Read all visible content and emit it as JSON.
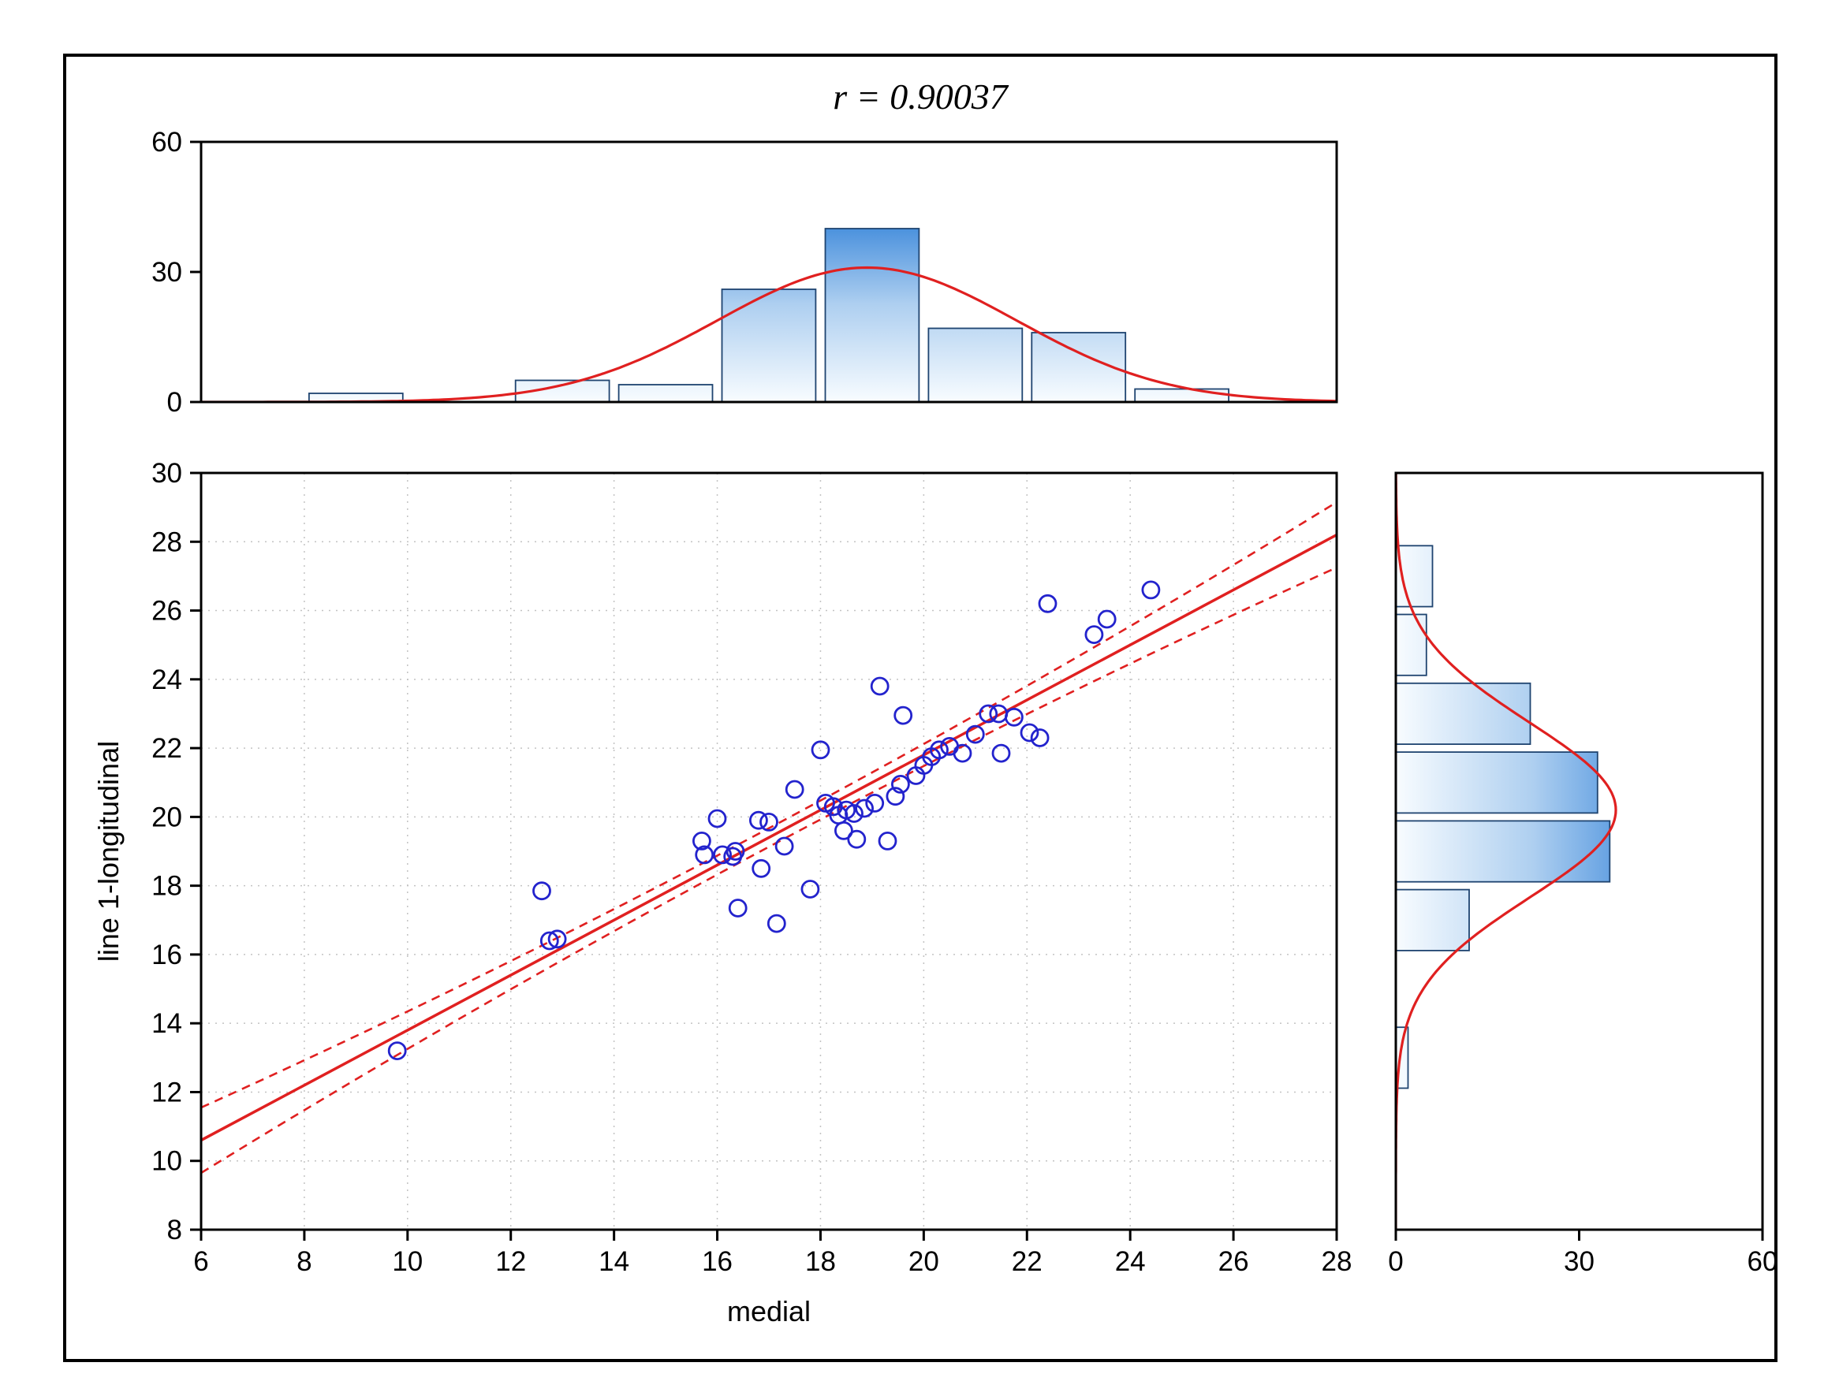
{
  "chart_data": {
    "type": "scatter",
    "title": "r = 0.90037",
    "r": 0.90037,
    "xlabel": "medial",
    "ylabel": "line 1-longitudinal",
    "x_range": [
      6,
      28
    ],
    "y_range": [
      8,
      30
    ],
    "x_ticks": [
      6,
      8,
      10,
      12,
      14,
      16,
      18,
      20,
      22,
      24,
      26,
      28
    ],
    "y_ticks": [
      8,
      10,
      12,
      14,
      16,
      18,
      20,
      22,
      24,
      26,
      28,
      30
    ],
    "grid": true,
    "points": [
      [
        9.8,
        13.2
      ],
      [
        12.6,
        17.85
      ],
      [
        12.75,
        16.4
      ],
      [
        12.9,
        16.45
      ],
      [
        15.7,
        19.3
      ],
      [
        15.75,
        18.9
      ],
      [
        16.0,
        19.95
      ],
      [
        16.1,
        18.9
      ],
      [
        16.3,
        18.85
      ],
      [
        16.35,
        19.0
      ],
      [
        16.4,
        17.35
      ],
      [
        16.8,
        19.9
      ],
      [
        16.85,
        18.5
      ],
      [
        17.0,
        19.85
      ],
      [
        17.15,
        16.9
      ],
      [
        17.3,
        19.15
      ],
      [
        17.5,
        20.8
      ],
      [
        17.8,
        17.9
      ],
      [
        18.0,
        21.95
      ],
      [
        18.1,
        20.4
      ],
      [
        18.25,
        20.3
      ],
      [
        18.35,
        20.05
      ],
      [
        18.45,
        19.6
      ],
      [
        18.5,
        20.2
      ],
      [
        18.65,
        20.1
      ],
      [
        18.7,
        19.35
      ],
      [
        18.85,
        20.25
      ],
      [
        19.05,
        20.4
      ],
      [
        19.15,
        23.8
      ],
      [
        19.3,
        19.3
      ],
      [
        19.45,
        20.6
      ],
      [
        19.55,
        20.95
      ],
      [
        19.6,
        22.95
      ],
      [
        19.85,
        21.2
      ],
      [
        20.0,
        21.5
      ],
      [
        20.15,
        21.75
      ],
      [
        20.3,
        21.95
      ],
      [
        20.5,
        22.05
      ],
      [
        20.75,
        21.85
      ],
      [
        21.0,
        22.4
      ],
      [
        21.25,
        23.0
      ],
      [
        21.45,
        23.0
      ],
      [
        21.5,
        21.85
      ],
      [
        21.75,
        22.9
      ],
      [
        22.05,
        22.45
      ],
      [
        22.25,
        22.3
      ],
      [
        22.4,
        26.2
      ],
      [
        23.3,
        25.3
      ],
      [
        23.55,
        25.75
      ],
      [
        24.4,
        26.6
      ]
    ],
    "regression_line": {
      "x": [
        6,
        28
      ],
      "y": [
        10.6,
        28.2
      ]
    },
    "confidence_band": {
      "end_offset": 0.95,
      "mid_offset": 0.27,
      "style": "dashed"
    },
    "top_histogram": {
      "type": "bar",
      "orientation": "vertical",
      "y_range": [
        0,
        60
      ],
      "y_ticks": [
        0,
        30,
        60
      ],
      "bins": [
        {
          "from": 8,
          "to": 10,
          "count": 2
        },
        {
          "from": 12,
          "to": 14,
          "count": 5
        },
        {
          "from": 14,
          "to": 16,
          "count": 4
        },
        {
          "from": 16,
          "to": 18,
          "count": 26
        },
        {
          "from": 18,
          "to": 20,
          "count": 40
        },
        {
          "from": 20,
          "to": 22,
          "count": 17
        },
        {
          "from": 22,
          "to": 24,
          "count": 16
        },
        {
          "from": 24,
          "to": 26,
          "count": 3
        }
      ],
      "normal_curve": {
        "mean": 18.9,
        "sd": 2.9,
        "peak": 31
      }
    },
    "right_histogram": {
      "type": "bar",
      "orientation": "horizontal",
      "x_range": [
        0,
        60
      ],
      "x_ticks": [
        0,
        30,
        60
      ],
      "bins": [
        {
          "from": 12,
          "to": 14,
          "count": 2
        },
        {
          "from": 16,
          "to": 18,
          "count": 12
        },
        {
          "from": 18,
          "to": 20,
          "count": 35
        },
        {
          "from": 20,
          "to": 22,
          "count": 33
        },
        {
          "from": 22,
          "to": 24,
          "count": 22
        },
        {
          "from": 24,
          "to": 26,
          "count": 5
        },
        {
          "from": 26,
          "to": 28,
          "count": 6
        }
      ],
      "normal_curve": {
        "mean": 20.2,
        "sd": 2.55,
        "peak": 36
      }
    },
    "colors": {
      "marker": "#2323cd",
      "fit_line": "#e02020",
      "curve": "#e02020",
      "bar_light": "#f8fcff",
      "bar_mid": "#aecff0",
      "bar_dark": "#2f80d8",
      "bar_border": "#1f4470",
      "grid": "#c3c3c3",
      "axis": "#000000"
    }
  }
}
